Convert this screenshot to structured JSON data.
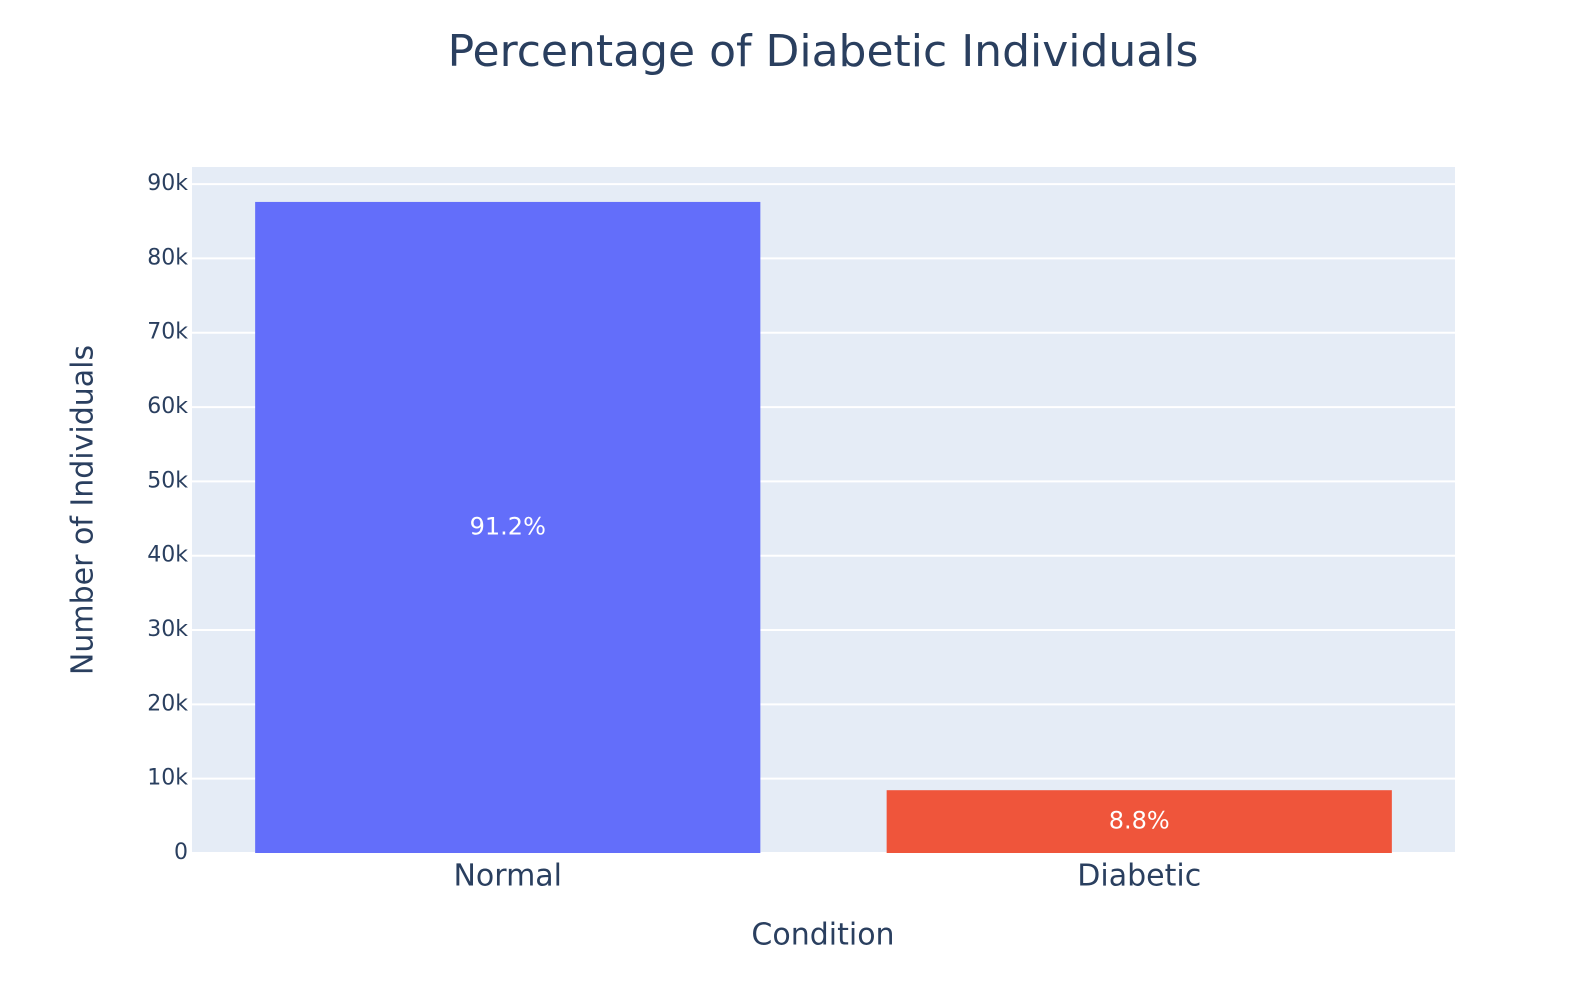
{
  "chart_data": {
    "type": "bar",
    "title": "Percentage of Diabetic Individuals",
    "x_label": "Condition",
    "y_label": "Number of Individuals",
    "categories": [
      "Normal",
      "Diabetic"
    ],
    "values": [
      87600,
      8450
    ],
    "value_labels": [
      "91.2%",
      "8.8%"
    ],
    "colors": [
      "#636efa",
      "#ef553b"
    ],
    "ylim": [
      0,
      92300
    ],
    "yticks": [
      0,
      {
        "value": 10000,
        "label": "10k"
      },
      {
        "value": 20000,
        "label": "20k"
      },
      {
        "value": 30000,
        "label": "30k"
      },
      {
        "value": 40000,
        "label": "40k"
      },
      {
        "value": 50000,
        "label": "50k"
      },
      {
        "value": 60000,
        "label": "60k"
      },
      {
        "value": 70000,
        "label": "70k"
      },
      {
        "value": 80000,
        "label": "80k"
      },
      {
        "value": 90000,
        "label": "90k"
      }
    ],
    "grid": true
  }
}
